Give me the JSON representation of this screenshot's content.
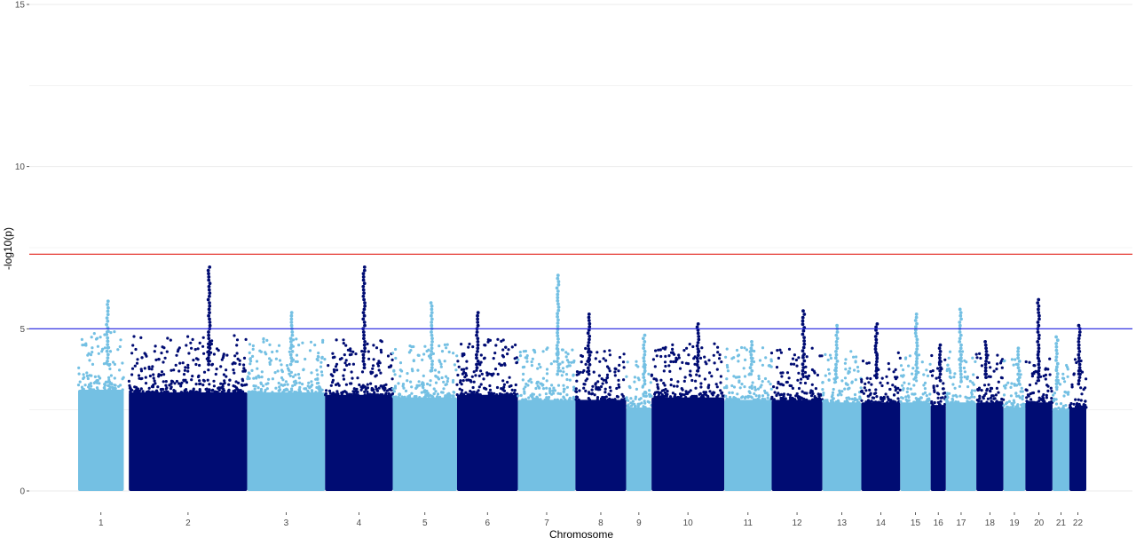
{
  "chart_data": {
    "type": "scatter",
    "subtype": "manhattan",
    "title": "",
    "xlabel": "Chromosome",
    "ylabel": "-log10(p)",
    "ylim": [
      0,
      15
    ],
    "yticks": [
      "0",
      "5",
      "10",
      "15"
    ],
    "grid": "horizontal",
    "legend": "none",
    "colors": {
      "odd": "#74c0e3",
      "even": "#000c73",
      "genome_wide_line": "#e2231a",
      "suggestive_line": "#2020e0",
      "grid": "#ebebeb"
    },
    "thresholds": [
      {
        "name": "genome-wide",
        "value": 7.3,
        "color": "#e2231a"
      },
      {
        "name": "suggestive",
        "value": 5.0,
        "color": "#2020e0"
      }
    ],
    "chromosomes": [
      {
        "label": "1",
        "start": 0.0,
        "end": 13.5,
        "band_top": 4.0,
        "peak": 5.85
      },
      {
        "label": "2",
        "start": 15.0,
        "end": 50.0,
        "band_top": 3.9,
        "peak": 6.9
      },
      {
        "label": "3",
        "start": 50.0,
        "end": 73.0,
        "band_top": 3.9,
        "peak": 5.5
      },
      {
        "label": "4",
        "start": 73.0,
        "end": 93.0,
        "band_top": 3.8,
        "peak": 6.9
      },
      {
        "label": "5",
        "start": 93.0,
        "end": 112.0,
        "band_top": 3.7,
        "peak": 5.8
      },
      {
        "label": "6",
        "start": 112.0,
        "end": 130.0,
        "band_top": 3.8,
        "peak": 5.5
      },
      {
        "label": "7",
        "start": 130.0,
        "end": 147.0,
        "band_top": 3.6,
        "peak": 6.65
      },
      {
        "label": "8",
        "start": 147.0,
        "end": 162.0,
        "band_top": 3.6,
        "peak": 5.45
      },
      {
        "label": "9",
        "start": 162.0,
        "end": 169.5,
        "band_top": 3.3,
        "peak": 4.8
      },
      {
        "label": "10",
        "start": 169.5,
        "end": 191.0,
        "band_top": 3.7,
        "peak": 5.15
      },
      {
        "label": "11",
        "start": 191.0,
        "end": 205.0,
        "band_top": 3.6,
        "peak": 4.6
      },
      {
        "label": "12",
        "start": 205.0,
        "end": 220.0,
        "band_top": 3.6,
        "peak": 5.55
      },
      {
        "label": "13",
        "start": 220.0,
        "end": 231.5,
        "band_top": 3.5,
        "peak": 5.1
      },
      {
        "label": "14",
        "start": 231.5,
        "end": 243.0,
        "band_top": 3.5,
        "peak": 5.15
      },
      {
        "label": "15",
        "start": 243.0,
        "end": 252.0,
        "band_top": 3.5,
        "peak": 5.45
      },
      {
        "label": "16",
        "start": 252.0,
        "end": 256.5,
        "band_top": 3.4,
        "peak": 4.5
      },
      {
        "label": "17",
        "start": 256.5,
        "end": 265.5,
        "band_top": 3.5,
        "peak": 5.6
      },
      {
        "label": "18",
        "start": 265.5,
        "end": 273.5,
        "band_top": 3.5,
        "peak": 4.6
      },
      {
        "label": "19",
        "start": 273.5,
        "end": 280.0,
        "band_top": 3.3,
        "peak": 4.4
      },
      {
        "label": "20",
        "start": 280.0,
        "end": 288.0,
        "band_top": 3.5,
        "peak": 5.9
      },
      {
        "label": "21",
        "start": 288.0,
        "end": 293.0,
        "band_top": 3.2,
        "peak": 4.75
      },
      {
        "label": "22",
        "start": 293.0,
        "end": 298.0,
        "band_top": 3.3,
        "peak": 5.1
      }
    ]
  }
}
